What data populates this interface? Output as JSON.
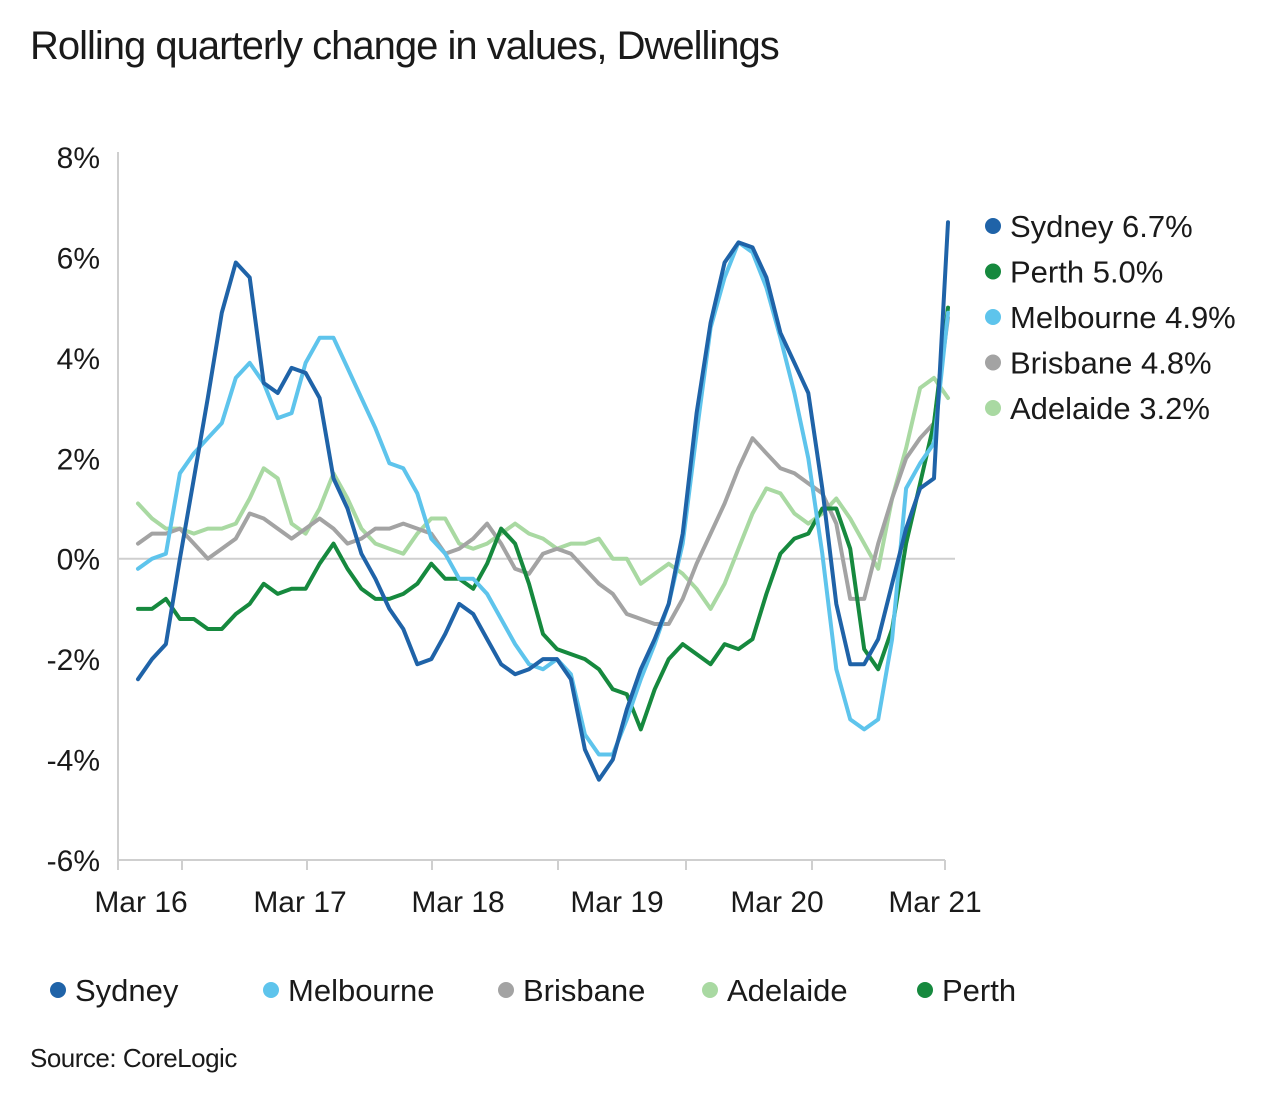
{
  "title": "Rolling quarterly change in values, Dwellings",
  "source": "Source: CoreLogic",
  "chart_data": {
    "type": "line",
    "title": "Rolling quarterly change in values, Dwellings",
    "xlabel": "",
    "ylabel": "",
    "ylim": [
      -6,
      8
    ],
    "y_ticks": [
      "8%",
      "6%",
      "4%",
      "2%",
      "0%",
      "-2%",
      "-4%",
      "-6%"
    ],
    "x_ticks": [
      "Mar 16",
      "Mar 17",
      "Mar 18",
      "Mar 19",
      "Mar 20",
      "Mar 21"
    ],
    "x_start": "Mar 16",
    "x_end": "Mar 21",
    "grid": false,
    "colors": {
      "Sydney": "#1f63a8",
      "Melbourne": "#5ec4ec",
      "Brisbane": "#a3a3a3",
      "Adelaide": "#a9d9a2",
      "Perth": "#16893e"
    },
    "series": [
      {
        "name": "Sydney",
        "values": [
          -2.4,
          -2.0,
          -1.7,
          0.0,
          1.6,
          3.2,
          4.9,
          5.9,
          5.6,
          3.5,
          3.3,
          3.8,
          3.7,
          3.2,
          1.6,
          1.0,
          0.1,
          -0.4,
          -1.0,
          -1.4,
          -2.1,
          -2.0,
          -1.5,
          -0.9,
          -1.1,
          -1.6,
          -2.1,
          -2.3,
          -2.2,
          -2.0,
          -2.0,
          -2.4,
          -3.8,
          -4.4,
          -4.0,
          -3.0,
          -2.2,
          -1.6,
          -0.9,
          0.5,
          2.9,
          4.7,
          5.9,
          6.3,
          6.2,
          5.6,
          4.5,
          3.9,
          3.3,
          1.4,
          -0.9,
          -2.1,
          -2.1,
          -1.6,
          -0.5,
          0.6,
          1.4,
          1.6,
          6.7
        ]
      },
      {
        "name": "Melbourne",
        "values": [
          -0.2,
          -0.0,
          0.1,
          1.7,
          2.1,
          2.4,
          2.7,
          3.6,
          3.9,
          3.5,
          2.8,
          2.9,
          3.9,
          4.4,
          4.4,
          3.8,
          3.2,
          2.6,
          1.9,
          1.8,
          1.3,
          0.4,
          0.1,
          -0.4,
          -0.4,
          -0.7,
          -1.2,
          -1.7,
          -2.1,
          -2.2,
          -2.0,
          -2.3,
          -3.5,
          -3.9,
          -3.9,
          -3.2,
          -2.4,
          -1.7,
          -0.9,
          0.3,
          2.5,
          4.6,
          5.6,
          6.3,
          6.1,
          5.4,
          4.4,
          3.3,
          2.0,
          0.1,
          -2.2,
          -3.2,
          -3.4,
          -3.2,
          -1.6,
          1.4,
          1.9,
          2.3,
          4.9
        ]
      },
      {
        "name": "Brisbane",
        "values": [
          0.3,
          0.5,
          0.5,
          0.6,
          0.3,
          0.0,
          0.2,
          0.4,
          0.9,
          0.8,
          0.6,
          0.4,
          0.6,
          0.8,
          0.6,
          0.3,
          0.4,
          0.6,
          0.6,
          0.7,
          0.6,
          0.5,
          0.1,
          0.2,
          0.4,
          0.7,
          0.3,
          -0.2,
          -0.3,
          0.1,
          0.2,
          0.1,
          -0.2,
          -0.5,
          -0.7,
          -1.1,
          -1.2,
          -1.3,
          -1.3,
          -0.8,
          -0.1,
          0.5,
          1.1,
          1.8,
          2.4,
          2.1,
          1.8,
          1.7,
          1.5,
          1.3,
          0.7,
          -0.8,
          -0.8,
          0.3,
          1.2,
          2.0,
          2.4,
          2.7,
          4.8
        ]
      },
      {
        "name": "Adelaide",
        "values": [
          1.1,
          0.8,
          0.6,
          0.6,
          0.5,
          0.6,
          0.6,
          0.7,
          1.2,
          1.8,
          1.6,
          0.7,
          0.5,
          1.0,
          1.7,
          1.2,
          0.6,
          0.3,
          0.2,
          0.1,
          0.5,
          0.8,
          0.8,
          0.3,
          0.2,
          0.3,
          0.5,
          0.7,
          0.5,
          0.4,
          0.2,
          0.3,
          0.3,
          0.4,
          0.0,
          0.0,
          -0.5,
          -0.3,
          -0.1,
          -0.3,
          -0.6,
          -1.0,
          -0.5,
          0.2,
          0.9,
          1.4,
          1.3,
          0.9,
          0.7,
          0.9,
          1.2,
          0.8,
          0.3,
          -0.2,
          1.2,
          2.2,
          3.4,
          3.6,
          3.2
        ]
      },
      {
        "name": "Perth",
        "values": [
          -1.0,
          -1.0,
          -0.8,
          -1.2,
          -1.2,
          -1.4,
          -1.4,
          -1.1,
          -0.9,
          -0.5,
          -0.7,
          -0.6,
          -0.6,
          -0.1,
          0.3,
          -0.2,
          -0.6,
          -0.8,
          -0.8,
          -0.7,
          -0.5,
          -0.1,
          -0.4,
          -0.4,
          -0.6,
          -0.1,
          0.6,
          0.3,
          -0.5,
          -1.5,
          -1.8,
          -1.9,
          -2.0,
          -2.2,
          -2.6,
          -2.7,
          -3.4,
          -2.6,
          -2.0,
          -1.7,
          -1.9,
          -2.1,
          -1.7,
          -1.8,
          -1.6,
          -0.7,
          0.1,
          0.4,
          0.5,
          1.0,
          1.0,
          0.2,
          -1.8,
          -2.2,
          -1.4,
          0.3,
          1.5,
          2.7,
          5.0
        ]
      }
    ],
    "legend_right": [
      {
        "name": "Sydney",
        "label": "Sydney 6.7%"
      },
      {
        "name": "Perth",
        "label": "Perth 5.0%"
      },
      {
        "name": "Melbourne",
        "label": "Melbourne 4.9%"
      },
      {
        "name": "Brisbane",
        "label": "Brisbane 4.8%"
      },
      {
        "name": "Adelaide",
        "label": "Adelaide 3.2%"
      }
    ],
    "legend_bottom": [
      "Sydney",
      "Melbourne",
      "Brisbane",
      "Adelaide",
      "Perth"
    ],
    "legend_placement": "right and bottom"
  }
}
